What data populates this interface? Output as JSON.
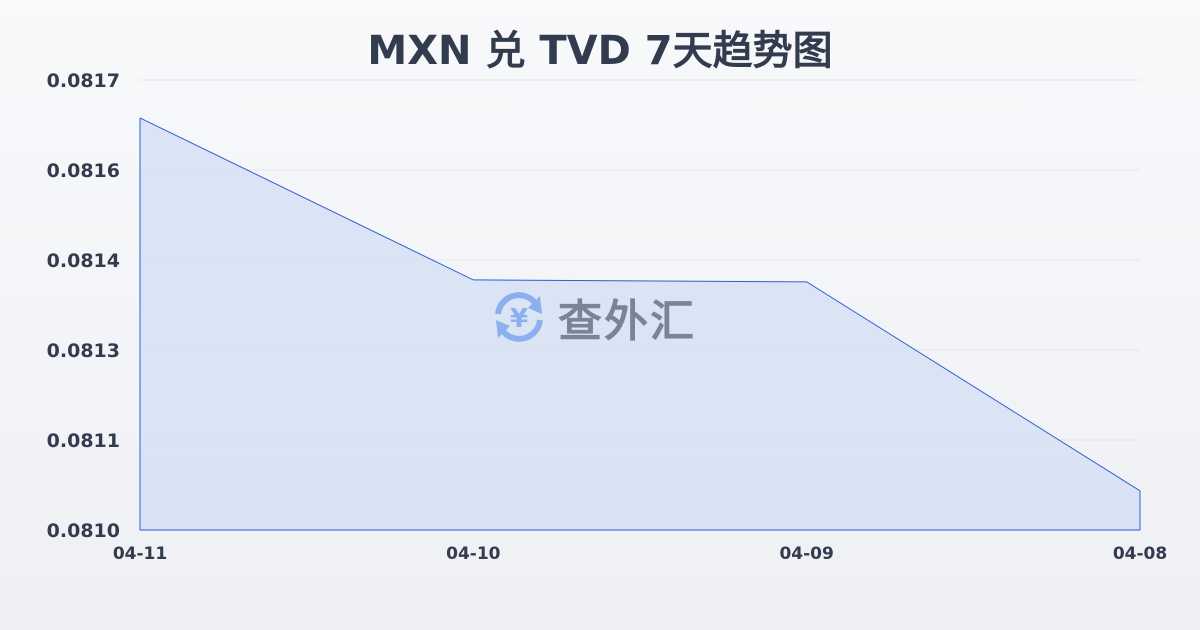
{
  "chart_data": {
    "type": "area",
    "title": "MXN 兑 TVD 7天趋势图",
    "xlabel": "",
    "ylabel": "",
    "categories": [
      "04-11",
      "04-10",
      "04-09",
      "04-08"
    ],
    "values": [
      0.081641,
      0.081389,
      0.081386,
      0.081061
    ],
    "ylim": [
      0.081,
      0.0817
    ],
    "yticks": [
      "0.0810",
      "0.0811",
      "0.0813",
      "0.0814",
      "0.0816",
      "0.0817"
    ],
    "grid": true,
    "colors": {
      "line": "#2f5fd0",
      "fill": "#d6e0f5",
      "grid": "#e3e6ec",
      "text": "#333c4e"
    }
  },
  "watermark": {
    "text": "查外汇",
    "icon": "yuan-exchange-icon",
    "color": "#7fa8ec"
  }
}
